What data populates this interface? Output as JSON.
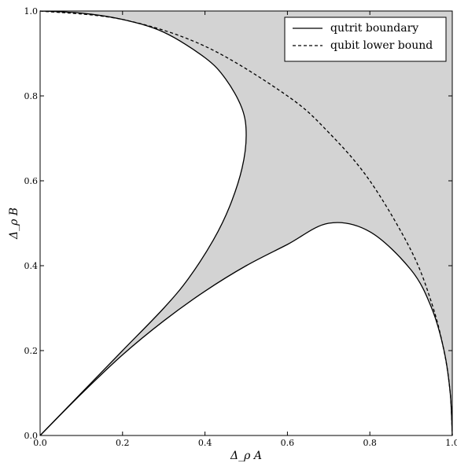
{
  "chart_data": {
    "type": "line",
    "title": "",
    "xlabel": "Δ_ρ A",
    "ylabel": "Δ_ρ B",
    "xlim": [
      0.0,
      1.0
    ],
    "ylim": [
      0.0,
      1.0
    ],
    "x_ticks": [
      "0.0",
      "0.2",
      "0.4",
      "0.6",
      "0.8",
      "1.0"
    ],
    "y_ticks": [
      "0.0",
      "0.2",
      "0.4",
      "0.6",
      "0.8",
      "1.0"
    ],
    "grid": false,
    "legend_position": "top-right",
    "fill_color": "#d3d3d3",
    "line_color": "#000000",
    "series": [
      {
        "name": "qutrit boundary",
        "style": "solid",
        "segments": [
          [
            [
              0.0,
              1.0
            ],
            [
              0.1,
              0.995
            ],
            [
              0.2,
              0.98
            ],
            [
              0.3,
              0.95
            ],
            [
              0.4,
              0.89
            ],
            [
              0.45,
              0.84
            ],
            [
              0.49,
              0.77
            ],
            [
              0.5,
              0.707
            ],
            [
              0.49,
              0.63
            ],
            [
              0.46,
              0.54
            ],
            [
              0.42,
              0.46
            ],
            [
              0.36,
              0.37
            ],
            [
              0.3,
              0.3
            ],
            [
              0.2,
              0.2
            ],
            [
              0.1,
              0.1
            ],
            [
              0.0,
              0.0
            ]
          ],
          [
            [
              0.0,
              0.0
            ],
            [
              0.1,
              0.098
            ],
            [
              0.2,
              0.19
            ],
            [
              0.3,
              0.27
            ],
            [
              0.4,
              0.34
            ],
            [
              0.5,
              0.4
            ],
            [
              0.6,
              0.45
            ],
            [
              0.7,
              0.5
            ],
            [
              0.8,
              0.48
            ],
            [
              0.9,
              0.39
            ],
            [
              0.95,
              0.3
            ],
            [
              0.98,
              0.2
            ],
            [
              0.995,
              0.1
            ],
            [
              1.0,
              0.0
            ]
          ]
        ]
      },
      {
        "name": "qubit lower bound",
        "style": "dashed",
        "segments": [
          [
            [
              0.0,
              1.0
            ],
            [
              0.2,
              0.98
            ],
            [
              0.4,
              0.917
            ],
            [
              0.6,
              0.8
            ],
            [
              0.7,
              0.714
            ],
            [
              0.8,
              0.6
            ],
            [
              0.9,
              0.436
            ],
            [
              0.95,
              0.312
            ],
            [
              0.98,
              0.199
            ],
            [
              0.995,
              0.1
            ],
            [
              1.0,
              0.0
            ]
          ]
        ]
      }
    ]
  }
}
